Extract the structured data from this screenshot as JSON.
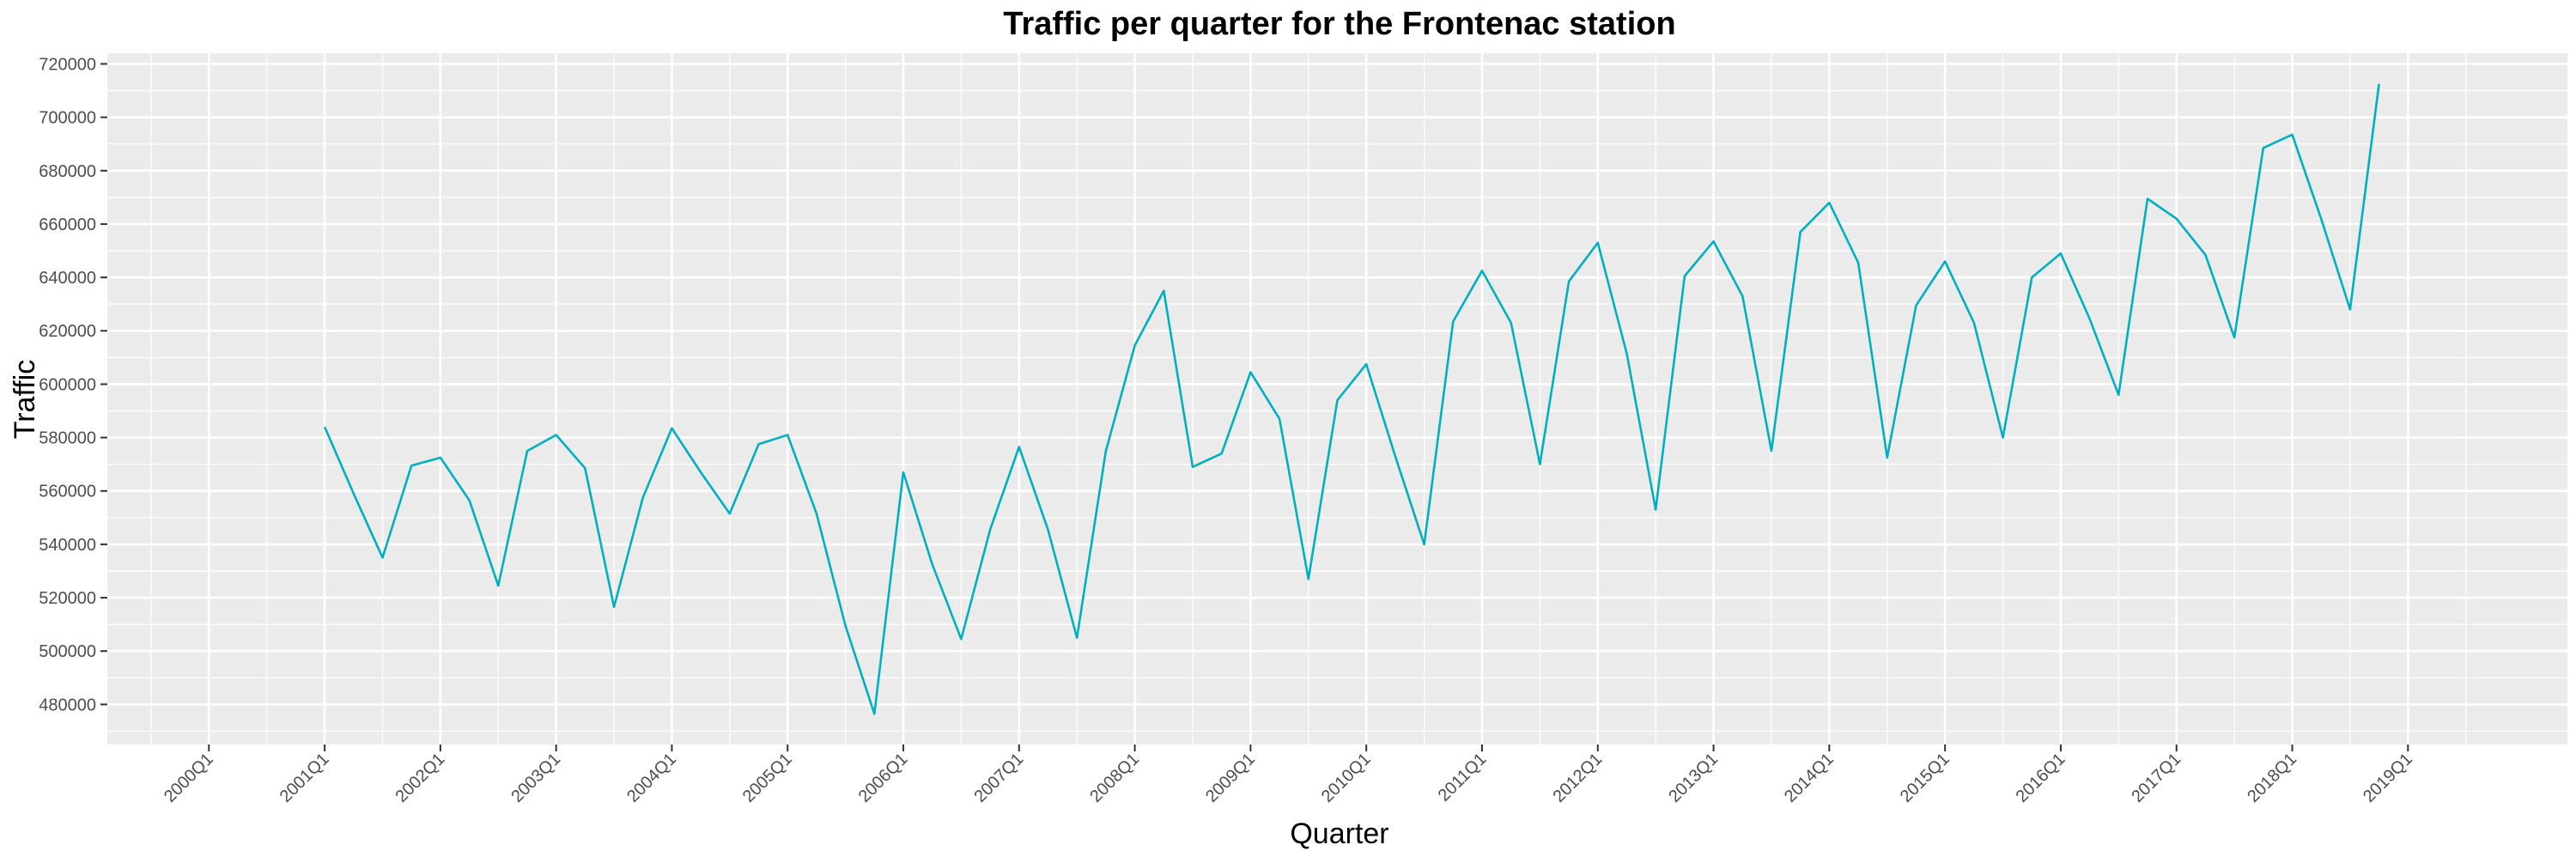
{
  "chart_data": {
    "type": "line",
    "title": "Traffic per quarter for the Frontenac station",
    "xlabel": "Quarter",
    "ylabel": "Traffic",
    "grid": true,
    "legend": "none",
    "colors": {
      "panel_background": "#ebebeb",
      "grid": "#ffffff",
      "line": "#00b0c0",
      "tick": "#333333"
    },
    "x_tick_labels": [
      "2000Q1",
      "2001Q1",
      "2002Q1",
      "2003Q1",
      "2004Q1",
      "2005Q1",
      "2006Q1",
      "2007Q1",
      "2008Q1",
      "2009Q1",
      "2010Q1",
      "2011Q1",
      "2012Q1",
      "2013Q1",
      "2014Q1",
      "2015Q1",
      "2016Q1",
      "2017Q1",
      "2018Q1",
      "2019Q1"
    ],
    "y_tick_labels": [
      "480000",
      "500000",
      "520000",
      "540000",
      "560000",
      "580000",
      "600000",
      "620000",
      "640000",
      "660000",
      "680000",
      "700000",
      "720000"
    ],
    "y_ticks": [
      480000,
      500000,
      520000,
      540000,
      560000,
      580000,
      600000,
      620000,
      640000,
      660000,
      680000,
      700000,
      720000
    ],
    "xlim": [
      "2000Q1",
      "2019Q3"
    ],
    "ylim": [
      465000,
      724000
    ],
    "series": [
      {
        "x": [
          "2001Q1",
          "2001Q2",
          "2001Q3",
          "2001Q4",
          "2002Q1",
          "2002Q2",
          "2002Q3",
          "2002Q4",
          "2003Q1",
          "2003Q2",
          "2003Q3",
          "2003Q4",
          "2004Q1",
          "2004Q2",
          "2004Q3",
          "2004Q4",
          "2005Q1",
          "2005Q2",
          "2005Q3",
          "2005Q4",
          "2006Q1",
          "2006Q2",
          "2006Q3",
          "2006Q4",
          "2007Q1",
          "2007Q2",
          "2007Q3",
          "2007Q4",
          "2008Q1",
          "2008Q2",
          "2008Q3",
          "2008Q4",
          "2009Q1",
          "2009Q2",
          "2009Q3",
          "2009Q4",
          "2010Q1",
          "2010Q2",
          "2010Q3",
          "2010Q4",
          "2011Q1",
          "2011Q2",
          "2011Q3",
          "2011Q4",
          "2012Q1",
          "2012Q2",
          "2012Q3",
          "2012Q4",
          "2013Q1",
          "2013Q2",
          "2013Q3",
          "2013Q4",
          "2014Q1",
          "2014Q2",
          "2014Q3",
          "2014Q4",
          "2015Q1",
          "2015Q2",
          "2015Q3",
          "2015Q4",
          "2016Q1",
          "2016Q2",
          "2016Q3",
          "2016Q4",
          "2017Q1",
          "2017Q2",
          "2017Q3",
          "2017Q4",
          "2018Q1",
          "2018Q2",
          "2018Q3",
          "2018Q4"
        ],
        "values": [
          584000,
          559000,
          535000,
          569500,
          572500,
          556500,
          524500,
          575000,
          581000,
          568500,
          516500,
          557500,
          583500,
          567000,
          551500,
          577500,
          581000,
          551500,
          509500,
          476500,
          567000,
          532500,
          504500,
          545500,
          576500,
          545500,
          505000,
          575000,
          614500,
          635000,
          569000,
          574000,
          604500,
          587000,
          527000,
          594000,
          607500,
          573000,
          540000,
          623500,
          642500,
          623000,
          570000,
          638500,
          653000,
          611500,
          553000,
          640500,
          653500,
          633000,
          575000,
          657000,
          668000,
          645500,
          572500,
          629500,
          646000,
          623000,
          580000,
          640000,
          649000,
          624500,
          596000,
          669500,
          662000,
          648500,
          617500,
          688500,
          693500,
          662000,
          628000,
          712500
        ]
      }
    ]
  }
}
